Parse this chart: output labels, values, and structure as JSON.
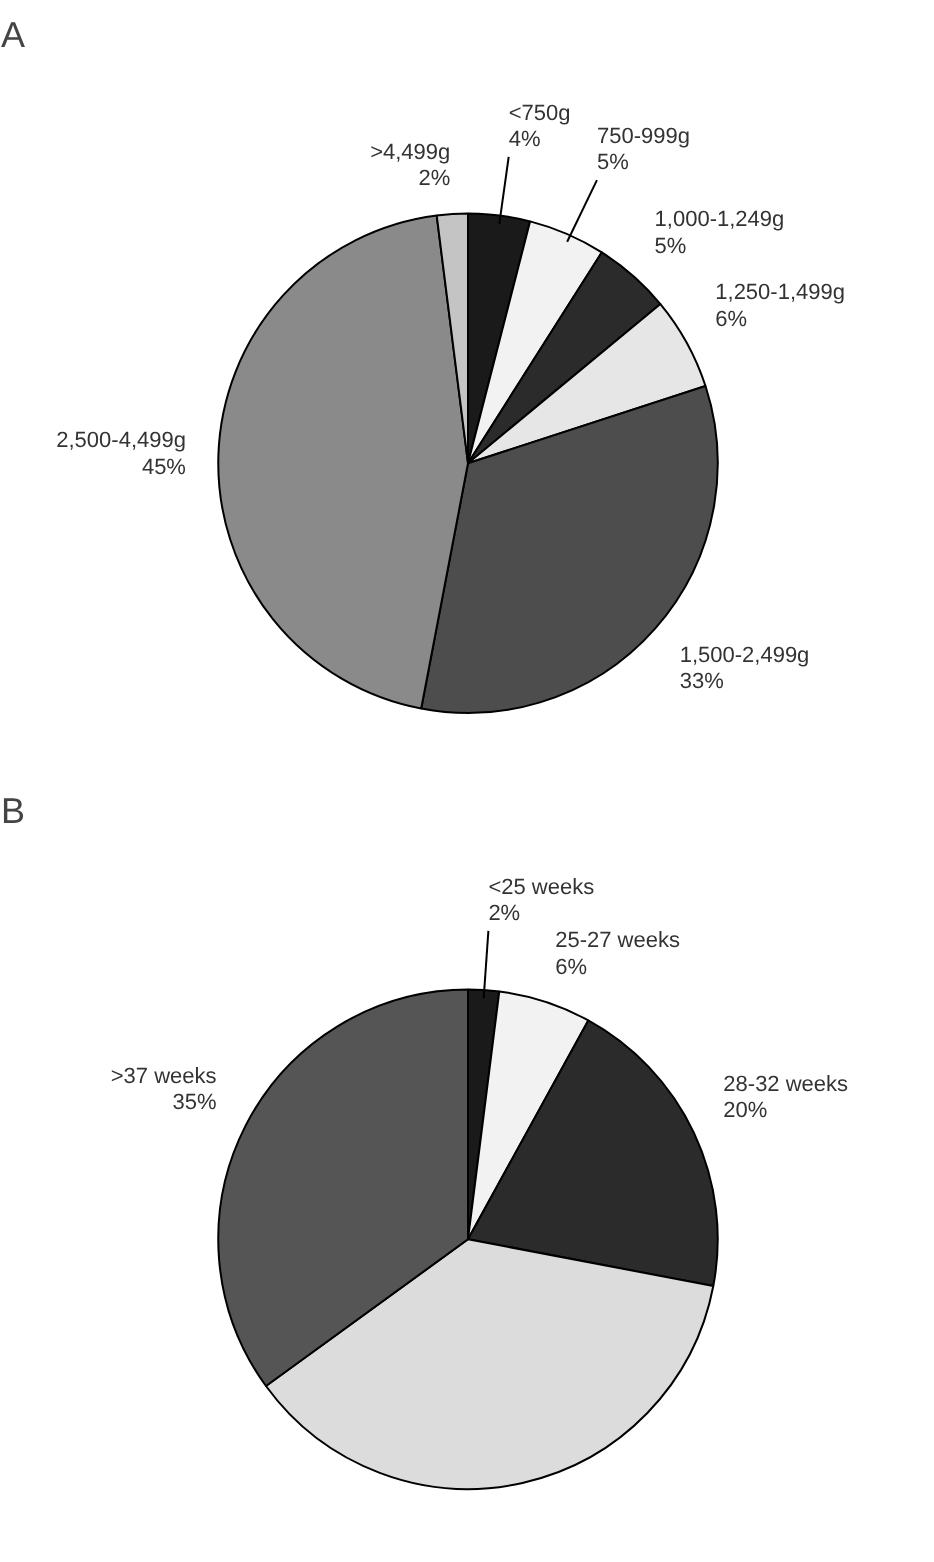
{
  "chart_data": [
    {
      "type": "pie",
      "title": "A",
      "categories": [
        "<750g",
        "750-999g",
        "1,000-1,249g",
        "1,250-1,499g",
        "1,500-2,499g",
        "2,500-4,499g",
        ">4,499g"
      ],
      "values": [
        4,
        5,
        5,
        6,
        33,
        45,
        2
      ],
      "value_labels": [
        "4%",
        "5%",
        "5%",
        "6%",
        "33%",
        "45%",
        "2%"
      ],
      "colors": [
        "#1a1a1a",
        "#f2f2f2",
        "#2b2b2b",
        "#e6e6e6",
        "#4d4d4d",
        "#8a8a8a",
        "#c4c4c4"
      ]
    },
    {
      "type": "pie",
      "title": "B",
      "categories": [
        "<25 weeks",
        "25-27 weeks",
        "28-32 weeks",
        null,
        ">37 weeks"
      ],
      "values": [
        2,
        6,
        20,
        37,
        35
      ],
      "value_labels": [
        "2%",
        "6%",
        "20%",
        null,
        "35%"
      ],
      "colors": [
        "#1a1a1a",
        "#f2f2f2",
        "#2b2b2b",
        "#dcdcdc",
        "#555555"
      ]
    }
  ]
}
